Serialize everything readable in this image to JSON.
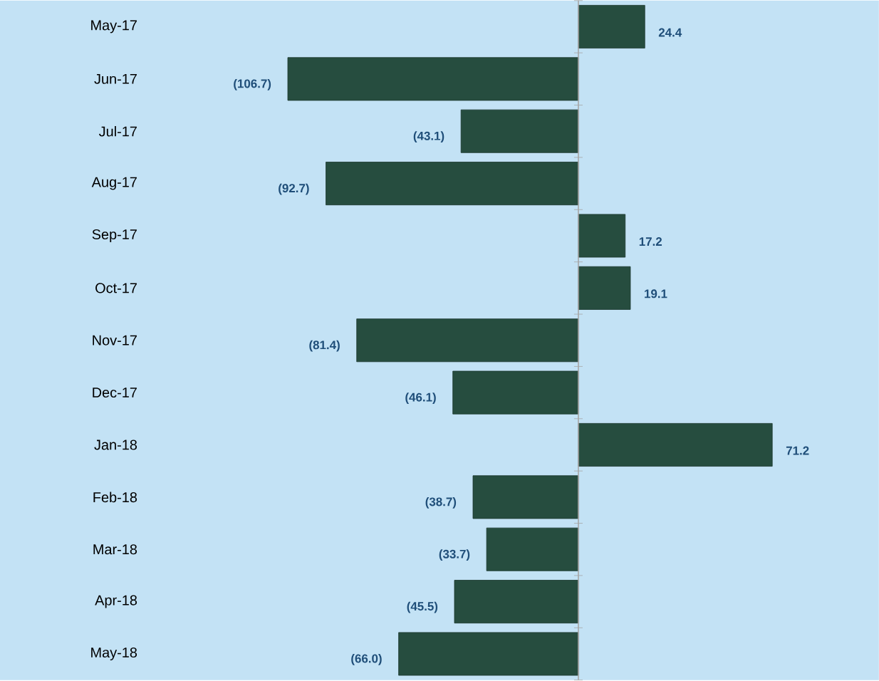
{
  "chart_data": {
    "type": "bar",
    "orientation": "horizontal",
    "categories": [
      "May-17",
      "Jun-17",
      "Jul-17",
      "Aug-17",
      "Sep-17",
      "Oct-17",
      "Nov-17",
      "Dec-17",
      "Jan-18",
      "Feb-18",
      "Mar-18",
      "Apr-18",
      "May-18"
    ],
    "values": [
      24.4,
      -106.7,
      -43.1,
      -92.7,
      17.2,
      19.1,
      -81.4,
      -46.1,
      71.2,
      -38.7,
      -33.7,
      -45.5,
      -66.0
    ],
    "value_labels": [
      "24.4",
      "(106.7)",
      "(43.1)",
      "(92.7)",
      "17.2",
      "19.1",
      "(81.4)",
      "(46.1)",
      "71.2",
      "(38.7)",
      "(33.7)",
      "(45.5)",
      "(66.0)"
    ],
    "color": "#264d3f"
  }
}
